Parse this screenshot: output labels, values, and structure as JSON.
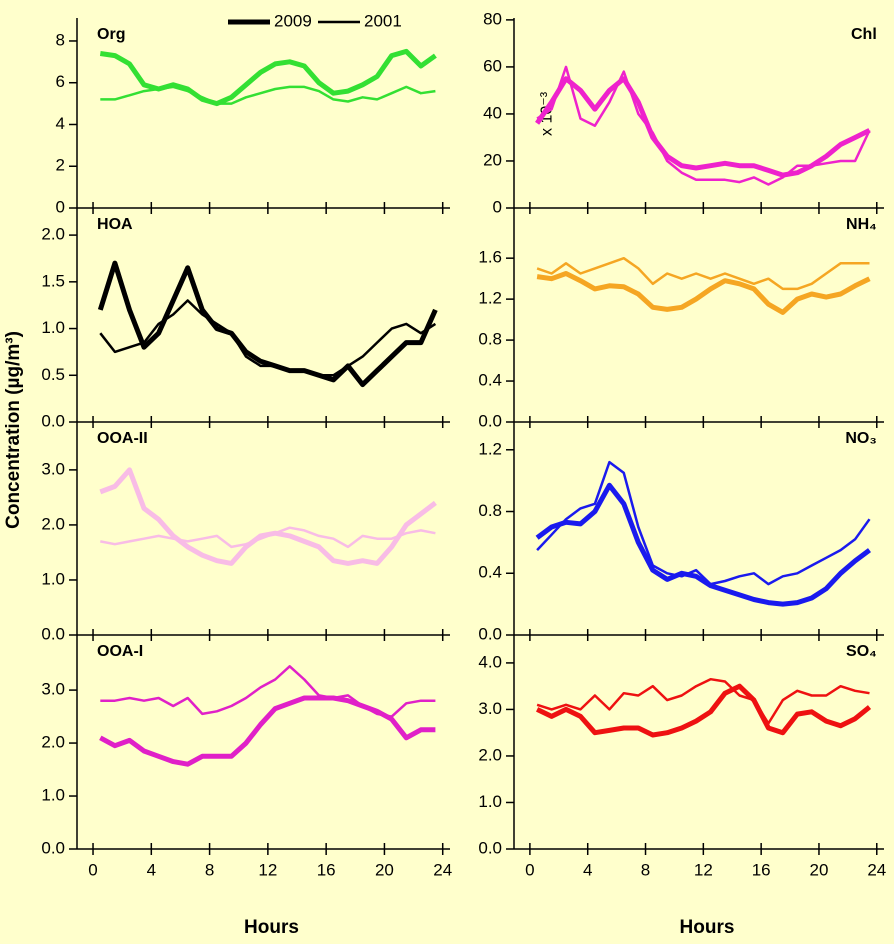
{
  "y_axis_label": "Concentration (µg/m³)",
  "chart_data": [
    {
      "type": "line",
      "title": "Org",
      "title_color": "#33e033",
      "column": 0,
      "row": 0,
      "legend": "top-right",
      "x": [
        0.5,
        1.5,
        2.5,
        3.5,
        4.5,
        5.5,
        6.5,
        7.5,
        8.5,
        9.5,
        10.5,
        11.5,
        12.5,
        13.5,
        14.5,
        15.5,
        16.5,
        17.5,
        18.5,
        19.5,
        20.5,
        21.5,
        22.5,
        23.5
      ],
      "xlim": [
        -1.1,
        24.5
      ],
      "xticks": [
        0,
        4,
        8,
        12,
        16,
        20,
        24
      ],
      "ylim": [
        0,
        9.1
      ],
      "yticks": [
        0,
        2,
        4,
        6,
        8
      ],
      "series": [
        {
          "name": "2009",
          "color": "#33e033",
          "width": 5,
          "values": [
            7.4,
            7.3,
            6.9,
            5.9,
            5.7,
            5.9,
            5.7,
            5.2,
            5.0,
            5.3,
            5.9,
            6.5,
            6.9,
            7.0,
            6.8,
            6.0,
            5.5,
            5.6,
            5.9,
            6.3,
            7.3,
            7.5,
            6.8,
            7.3
          ]
        },
        {
          "name": "2001",
          "color": "#33e033",
          "width": 2.5,
          "values": [
            5.2,
            5.2,
            5.4,
            5.6,
            5.7,
            5.8,
            5.6,
            5.3,
            5.0,
            5.0,
            5.3,
            5.5,
            5.7,
            5.8,
            5.8,
            5.6,
            5.2,
            5.1,
            5.3,
            5.2,
            5.5,
            5.8,
            5.5,
            5.6
          ]
        }
      ]
    },
    {
      "type": "line",
      "title": "HOA",
      "title_color": "#000000",
      "column": 0,
      "row": 1,
      "x": [
        0.5,
        1.5,
        2.5,
        3.5,
        4.5,
        5.5,
        6.5,
        7.5,
        8.5,
        9.5,
        10.5,
        11.5,
        12.5,
        13.5,
        14.5,
        15.5,
        16.5,
        17.5,
        18.5,
        19.5,
        20.5,
        21.5,
        22.5,
        23.5
      ],
      "xlim": [
        -1.1,
        24.5
      ],
      "xticks": [
        0,
        4,
        8,
        12,
        16,
        20,
        24
      ],
      "ylim": [
        0,
        2.29
      ],
      "yticks": [
        {
          "value": 0,
          "label": "0.0"
        },
        0.5,
        {
          "value": 1,
          "label": "1.0"
        },
        1.5,
        {
          "value": 2,
          "label": "2.0"
        }
      ],
      "series": [
        {
          "color": "#000000",
          "width": 5,
          "values": [
            1.2,
            1.7,
            1.2,
            0.8,
            0.95,
            1.3,
            1.65,
            1.2,
            1.0,
            0.95,
            0.75,
            0.65,
            0.6,
            0.55,
            0.55,
            0.5,
            0.45,
            0.6,
            0.4,
            0.55,
            0.7,
            0.85,
            0.85,
            1.2
          ]
        },
        {
          "color": "#000000",
          "width": 2.5,
          "values": [
            0.95,
            0.75,
            0.8,
            0.85,
            1.05,
            1.15,
            1.3,
            1.15,
            1.05,
            0.95,
            0.7,
            0.6,
            0.6,
            0.55,
            0.55,
            0.5,
            0.5,
            0.6,
            0.7,
            0.85,
            1.0,
            1.05,
            0.95,
            1.05
          ]
        }
      ]
    },
    {
      "type": "line",
      "title": "OOA-II",
      "title_color": "#f8bce6",
      "column": 0,
      "row": 2,
      "x": [
        0.5,
        1.5,
        2.5,
        3.5,
        4.5,
        5.5,
        6.5,
        7.5,
        8.5,
        9.5,
        10.5,
        11.5,
        12.5,
        13.5,
        14.5,
        15.5,
        16.5,
        17.5,
        18.5,
        19.5,
        20.5,
        21.5,
        22.5,
        23.5
      ],
      "xlim": [
        -1.1,
        24.5
      ],
      "xticks": [
        0,
        4,
        8,
        12,
        16,
        20,
        24
      ],
      "ylim": [
        0,
        3.87
      ],
      "yticks": [
        {
          "value": 0,
          "label": "0.0"
        },
        {
          "value": 1,
          "label": "1.0"
        },
        {
          "value": 2,
          "label": "2.0"
        },
        {
          "value": 3,
          "label": "3.0"
        }
      ],
      "series": [
        {
          "color": "#f8bce6",
          "width": 5,
          "values": [
            2.6,
            2.7,
            3.0,
            2.3,
            2.1,
            1.8,
            1.6,
            1.45,
            1.35,
            1.3,
            1.6,
            1.8,
            1.85,
            1.8,
            1.7,
            1.6,
            1.35,
            1.3,
            1.35,
            1.3,
            1.6,
            2.0,
            2.2,
            2.4
          ]
        },
        {
          "color": "#f8bce6",
          "width": 2.5,
          "values": [
            1.7,
            1.65,
            1.7,
            1.75,
            1.8,
            1.75,
            1.7,
            1.75,
            1.8,
            1.6,
            1.65,
            1.75,
            1.85,
            1.95,
            1.9,
            1.8,
            1.75,
            1.6,
            1.8,
            1.75,
            1.75,
            1.85,
            1.9,
            1.85
          ]
        }
      ]
    },
    {
      "type": "line",
      "title": "OOA-I",
      "title_color": "#e020c8",
      "column": 0,
      "row": 3,
      "xlabel": "Hours",
      "x": [
        0.5,
        1.5,
        2.5,
        3.5,
        4.5,
        5.5,
        6.5,
        7.5,
        8.5,
        9.5,
        10.5,
        11.5,
        12.5,
        13.5,
        14.5,
        15.5,
        16.5,
        17.5,
        18.5,
        19.5,
        20.5,
        21.5,
        22.5,
        23.5
      ],
      "xlim": [
        -1.1,
        24.5
      ],
      "xticks": [
        0,
        4,
        8,
        12,
        16,
        20,
        24
      ],
      "ylim": [
        0,
        4.04
      ],
      "yticks": [
        {
          "value": 0,
          "label": "0.0"
        },
        {
          "value": 1,
          "label": "1.0"
        },
        {
          "value": 2,
          "label": "2.0"
        },
        {
          "value": 3,
          "label": "3.0"
        }
      ],
      "series": [
        {
          "color": "#e020c8",
          "width": 5,
          "values": [
            2.1,
            1.95,
            2.05,
            1.85,
            1.75,
            1.65,
            1.6,
            1.75,
            1.75,
            1.75,
            2.0,
            2.35,
            2.65,
            2.75,
            2.85,
            2.85,
            2.85,
            2.8,
            2.7,
            2.6,
            2.45,
            2.1,
            2.25,
            2.25
          ]
        },
        {
          "color": "#e020c8",
          "width": 2.5,
          "values": [
            2.8,
            2.8,
            2.85,
            2.8,
            2.85,
            2.7,
            2.85,
            2.55,
            2.6,
            2.7,
            2.85,
            3.05,
            3.2,
            3.45,
            3.2,
            2.9,
            2.85,
            2.9,
            2.7,
            2.55,
            2.5,
            2.75,
            2.8,
            2.8
          ]
        }
      ]
    },
    {
      "type": "line",
      "title": "Chl",
      "title_color": "#ee22cc",
      "column": 1,
      "row": 0,
      "annotation": "x 10⁻³",
      "x": [
        0.5,
        1.5,
        2.5,
        3.5,
        4.5,
        5.5,
        6.5,
        7.5,
        8.5,
        9.5,
        10.5,
        11.5,
        12.5,
        13.5,
        14.5,
        15.5,
        16.5,
        17.5,
        18.5,
        19.5,
        20.5,
        21.5,
        22.5,
        23.5
      ],
      "xlim": [
        -1.1,
        24.5
      ],
      "xticks": [
        0,
        4,
        8,
        12,
        16,
        20,
        24
      ],
      "ylim": [
        0,
        80.8
      ],
      "yticks": [
        0,
        20,
        40,
        60,
        80
      ],
      "series": [
        {
          "color": "#ee22cc",
          "width": 5,
          "values": [
            36,
            45,
            55,
            50,
            42,
            50,
            55,
            45,
            30,
            22,
            18,
            17,
            18,
            19,
            18,
            18,
            16,
            14,
            15,
            18,
            22,
            27,
            30,
            33
          ]
        },
        {
          "color": "#ee22cc",
          "width": 2.5,
          "values": [
            38,
            42,
            60,
            38,
            35,
            45,
            58,
            40,
            32,
            20,
            15,
            12,
            12,
            12,
            11,
            13,
            10,
            13,
            18,
            18,
            19,
            20,
            20,
            33
          ]
        }
      ]
    },
    {
      "type": "line",
      "title": "NH₄",
      "title_color": "#f5a623",
      "column": 1,
      "row": 1,
      "x": [
        0.5,
        1.5,
        2.5,
        3.5,
        4.5,
        5.5,
        6.5,
        7.5,
        8.5,
        9.5,
        10.5,
        11.5,
        12.5,
        13.5,
        14.5,
        15.5,
        16.5,
        17.5,
        18.5,
        19.5,
        20.5,
        21.5,
        22.5,
        23.5
      ],
      "xlim": [
        -1.1,
        24.5
      ],
      "xticks": [
        0,
        4,
        8,
        12,
        16,
        20,
        24
      ],
      "ylim": [
        0,
        2.09
      ],
      "yticks": [
        {
          "value": 0,
          "label": "0.0"
        },
        0.4,
        0.8,
        1.2,
        1.6
      ],
      "series": [
        {
          "color": "#f5a623",
          "width": 5,
          "values": [
            1.42,
            1.4,
            1.45,
            1.38,
            1.3,
            1.33,
            1.32,
            1.25,
            1.12,
            1.1,
            1.12,
            1.2,
            1.3,
            1.38,
            1.35,
            1.3,
            1.15,
            1.07,
            1.2,
            1.25,
            1.22,
            1.25,
            1.33,
            1.4
          ]
        },
        {
          "color": "#f5a623",
          "width": 2.5,
          "values": [
            1.5,
            1.45,
            1.55,
            1.45,
            1.5,
            1.55,
            1.6,
            1.5,
            1.35,
            1.45,
            1.4,
            1.45,
            1.4,
            1.45,
            1.4,
            1.35,
            1.4,
            1.3,
            1.3,
            1.35,
            1.45,
            1.55,
            1.55,
            1.55
          ]
        }
      ]
    },
    {
      "type": "line",
      "title": "NO₃",
      "title_color": "#1a1aee",
      "column": 1,
      "row": 2,
      "x": [
        0.5,
        1.5,
        2.5,
        3.5,
        4.5,
        5.5,
        6.5,
        7.5,
        8.5,
        9.5,
        10.5,
        11.5,
        12.5,
        13.5,
        14.5,
        15.5,
        16.5,
        17.5,
        18.5,
        19.5,
        20.5,
        21.5,
        22.5,
        23.5
      ],
      "xlim": [
        -1.1,
        24.5
      ],
      "xticks": [
        0,
        4,
        8,
        12,
        16,
        20,
        24
      ],
      "ylim": [
        0,
        1.38
      ],
      "yticks": [
        {
          "value": 0,
          "label": "0.0"
        },
        0.4,
        0.8,
        1.2
      ],
      "series": [
        {
          "color": "#1a1aee",
          "width": 5,
          "values": [
            0.63,
            0.7,
            0.73,
            0.72,
            0.8,
            0.97,
            0.85,
            0.6,
            0.42,
            0.36,
            0.4,
            0.38,
            0.32,
            0.29,
            0.26,
            0.23,
            0.21,
            0.2,
            0.21,
            0.24,
            0.3,
            0.4,
            0.48,
            0.55
          ]
        },
        {
          "color": "#1a1aee",
          "width": 2.5,
          "values": [
            0.55,
            0.65,
            0.75,
            0.82,
            0.85,
            1.12,
            1.05,
            0.7,
            0.45,
            0.4,
            0.38,
            0.42,
            0.33,
            0.35,
            0.38,
            0.4,
            0.33,
            0.38,
            0.4,
            0.45,
            0.5,
            0.55,
            0.62,
            0.75
          ]
        }
      ]
    },
    {
      "type": "line",
      "title": "SO₄",
      "title_color": "#ee1111",
      "column": 1,
      "row": 3,
      "xlabel": "Hours",
      "x": [
        0.5,
        1.5,
        2.5,
        3.5,
        4.5,
        5.5,
        6.5,
        7.5,
        8.5,
        9.5,
        10.5,
        11.5,
        12.5,
        13.5,
        14.5,
        15.5,
        16.5,
        17.5,
        18.5,
        19.5,
        20.5,
        21.5,
        22.5,
        23.5
      ],
      "xlim": [
        -1.1,
        24.5
      ],
      "xticks": [
        0,
        4,
        8,
        12,
        16,
        20,
        24
      ],
      "ylim": [
        0,
        4.6
      ],
      "yticks": [
        {
          "value": 0,
          "label": "0.0"
        },
        {
          "value": 1,
          "label": "1.0"
        },
        {
          "value": 2,
          "label": "2.0"
        },
        {
          "value": 3,
          "label": "3.0"
        },
        {
          "value": 4,
          "label": "4.0"
        }
      ],
      "series": [
        {
          "color": "#ee1111",
          "width": 5,
          "values": [
            3.0,
            2.85,
            3.0,
            2.85,
            2.5,
            2.55,
            2.6,
            2.6,
            2.45,
            2.5,
            2.6,
            2.75,
            2.95,
            3.35,
            3.5,
            3.2,
            2.6,
            2.5,
            2.9,
            2.95,
            2.75,
            2.65,
            2.8,
            3.05
          ]
        },
        {
          "color": "#ee1111",
          "width": 2.5,
          "values": [
            3.1,
            3.0,
            3.1,
            3.0,
            3.3,
            3.0,
            3.35,
            3.3,
            3.5,
            3.2,
            3.3,
            3.5,
            3.65,
            3.6,
            3.3,
            3.2,
            2.7,
            3.2,
            3.4,
            3.3,
            3.3,
            3.5,
            3.4,
            3.35
          ]
        }
      ]
    }
  ]
}
